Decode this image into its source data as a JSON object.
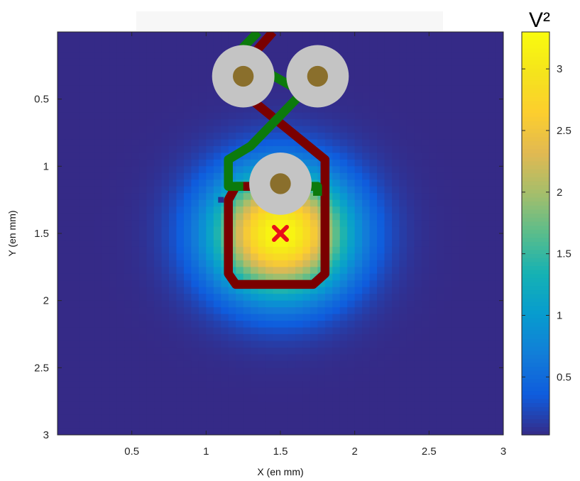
{
  "chart_data": {
    "type": "heatmap",
    "xlabel": "X (en mm)",
    "ylabel": "Y (en mm)",
    "xlim": [
      0,
      3
    ],
    "ylim": [
      0,
      3
    ],
    "y_reversed": true,
    "xticks": [
      0.5,
      1,
      1.5,
      2,
      2.5,
      3
    ],
    "xtick_labels": [
      "0.5",
      "1",
      "1.5",
      "2",
      "2.5",
      "3"
    ],
    "yticks": [
      0.5,
      1,
      1.5,
      2,
      2.5,
      3
    ],
    "ytick_labels": [
      "0.5",
      "1",
      "1.5",
      "2",
      "2.5",
      "3"
    ],
    "grid": false,
    "colormap": "parula",
    "colorbar": {
      "title": "V²",
      "range": [
        0.03,
        3.3
      ],
      "ticks": [
        0.5,
        1,
        1.5,
        2,
        2.5,
        3
      ],
      "tick_labels": [
        "0.5",
        "1",
        "1.5",
        "2",
        "2.5",
        "3"
      ]
    },
    "field": {
      "shape": "gaussian",
      "center": [
        1.5,
        1.5
      ],
      "peak": 3.3,
      "sigma_mm": 0.32,
      "floor": 0.03,
      "grid_step_mm": 0.05
    },
    "marker": {
      "symbol": "x",
      "x": 1.5,
      "y": 1.5,
      "color": "#e8101a"
    },
    "pads": [
      {
        "name": "pad-left",
        "x": 1.25,
        "y": 0.33,
        "outer_radius_mm": 0.21,
        "inner_radius_mm": 0.07
      },
      {
        "name": "pad-right",
        "x": 1.75,
        "y": 0.33,
        "outer_radius_mm": 0.21,
        "inner_radius_mm": 0.07
      },
      {
        "name": "pad-center",
        "x": 1.5,
        "y": 1.13,
        "outer_radius_mm": 0.21,
        "inner_radius_mm": 0.07
      }
    ],
    "traces": [
      {
        "name": "red-trace",
        "color": "#7a0000",
        "points": [
          [
            1.45,
            0.0
          ],
          [
            1.25,
            0.25
          ],
          [
            1.3,
            0.5
          ],
          [
            1.8,
            0.95
          ],
          [
            1.8,
            1.8
          ],
          [
            1.72,
            1.88
          ],
          [
            1.2,
            1.88
          ],
          [
            1.15,
            1.8
          ],
          [
            1.15,
            1.25
          ],
          [
            1.2,
            1.15
          ],
          [
            1.3,
            1.15
          ]
        ]
      },
      {
        "name": "green-trace",
        "color": "#0c7a0c",
        "points": [
          [
            1.35,
            0.0
          ],
          [
            1.2,
            0.17
          ],
          [
            1.65,
            0.45
          ],
          [
            1.3,
            0.85
          ],
          [
            1.15,
            0.95
          ],
          [
            1.15,
            1.15
          ],
          [
            1.25,
            1.15
          ]
        ]
      },
      {
        "name": "green-trace-stub",
        "color": "#0c7a0c",
        "points": [
          [
            1.7,
            1.15
          ],
          [
            1.75,
            1.15
          ],
          [
            1.75,
            1.22
          ]
        ]
      }
    ],
    "artifacts": [
      {
        "name": "small-square",
        "x": 1.1,
        "y": 1.25,
        "color": "#2a2d8e"
      }
    ],
    "colors": {
      "pad_outer": "#c4c4c4",
      "pad_inner": "#8a6f2c",
      "axes_frame": "#262626",
      "title_box": "#f7f7f7"
    }
  }
}
